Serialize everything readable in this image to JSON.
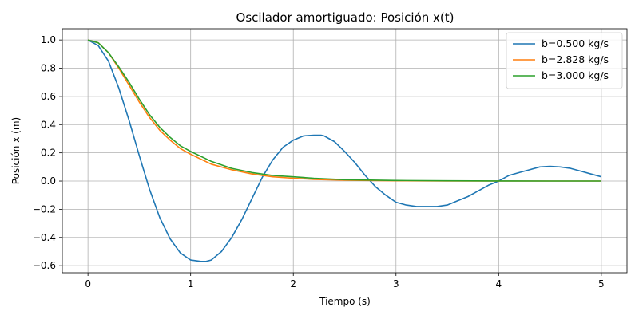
{
  "chart_data": {
    "type": "line",
    "title": "Oscilador amortiguado: Posición x(t)",
    "xlabel": "Tiempo (s)",
    "ylabel": "Posición x (m)",
    "xlim": [
      -0.25,
      5.25
    ],
    "ylim": [
      -0.65,
      1.08
    ],
    "xticks": [
      0,
      1,
      2,
      3,
      4,
      5
    ],
    "yticks": [
      -0.6,
      -0.4,
      -0.2,
      0.0,
      0.2,
      0.4,
      0.6,
      0.8,
      1.0
    ],
    "xtick_labels": [
      "0",
      "1",
      "2",
      "3",
      "4",
      "5"
    ],
    "ytick_labels": [
      "−0.6",
      "−0.4",
      "−0.2",
      "0.0",
      "0.2",
      "0.4",
      "0.6",
      "0.8",
      "1.0"
    ],
    "grid": true,
    "legend_position": "top-right",
    "series": [
      {
        "name": "b=0.500 kg/s",
        "color": "#1f77b4",
        "x": [
          0,
          0.1,
          0.2,
          0.3,
          0.4,
          0.5,
          0.6,
          0.7,
          0.8,
          0.9,
          1.0,
          1.1,
          1.15,
          1.2,
          1.3,
          1.4,
          1.5,
          1.6,
          1.7,
          1.8,
          1.9,
          2.0,
          2.1,
          2.2,
          2.27,
          2.3,
          2.4,
          2.5,
          2.6,
          2.7,
          2.8,
          2.9,
          3.0,
          3.1,
          3.2,
          3.3,
          3.4,
          3.5,
          3.6,
          3.7,
          3.8,
          3.9,
          4.0,
          4.1,
          4.2,
          4.3,
          4.4,
          4.5,
          4.6,
          4.7,
          4.8,
          4.9,
          5.0
        ],
        "y": [
          1.0,
          0.96,
          0.85,
          0.66,
          0.43,
          0.18,
          -0.06,
          -0.26,
          -0.41,
          -0.51,
          -0.56,
          -0.57,
          -0.57,
          -0.56,
          -0.5,
          -0.4,
          -0.27,
          -0.12,
          0.03,
          0.15,
          0.24,
          0.29,
          0.32,
          0.325,
          0.325,
          0.32,
          0.28,
          0.21,
          0.13,
          0.04,
          -0.04,
          -0.1,
          -0.15,
          -0.17,
          -0.18,
          -0.18,
          -0.18,
          -0.17,
          -0.14,
          -0.11,
          -0.07,
          -0.03,
          0.0,
          0.04,
          0.06,
          0.08,
          0.1,
          0.105,
          0.1,
          0.09,
          0.07,
          0.05,
          0.03
        ]
      },
      {
        "name": "b=2.828 kg/s",
        "color": "#ff7f0e",
        "x": [
          0,
          0.1,
          0.2,
          0.3,
          0.4,
          0.5,
          0.6,
          0.7,
          0.8,
          0.9,
          1.0,
          1.2,
          1.4,
          1.6,
          1.8,
          2.0,
          2.2,
          2.5,
          3.0,
          3.5,
          4.0,
          4.5,
          5.0
        ],
        "y": [
          1.0,
          0.98,
          0.91,
          0.8,
          0.68,
          0.56,
          0.45,
          0.36,
          0.29,
          0.23,
          0.19,
          0.12,
          0.08,
          0.05,
          0.03,
          0.02,
          0.012,
          0.006,
          0.002,
          0.001,
          0.0,
          0.0,
          0.0
        ]
      },
      {
        "name": "b=3.000 kg/s",
        "color": "#2ca02c",
        "x": [
          0,
          0.1,
          0.2,
          0.3,
          0.4,
          0.5,
          0.6,
          0.7,
          0.8,
          0.9,
          1.0,
          1.2,
          1.4,
          1.6,
          1.8,
          2.0,
          2.2,
          2.5,
          3.0,
          3.5,
          4.0,
          4.5,
          5.0
        ],
        "y": [
          1.0,
          0.98,
          0.91,
          0.81,
          0.7,
          0.58,
          0.47,
          0.38,
          0.31,
          0.25,
          0.21,
          0.14,
          0.09,
          0.06,
          0.04,
          0.03,
          0.02,
          0.01,
          0.004,
          0.002,
          0.001,
          0.0,
          0.0
        ]
      }
    ]
  }
}
